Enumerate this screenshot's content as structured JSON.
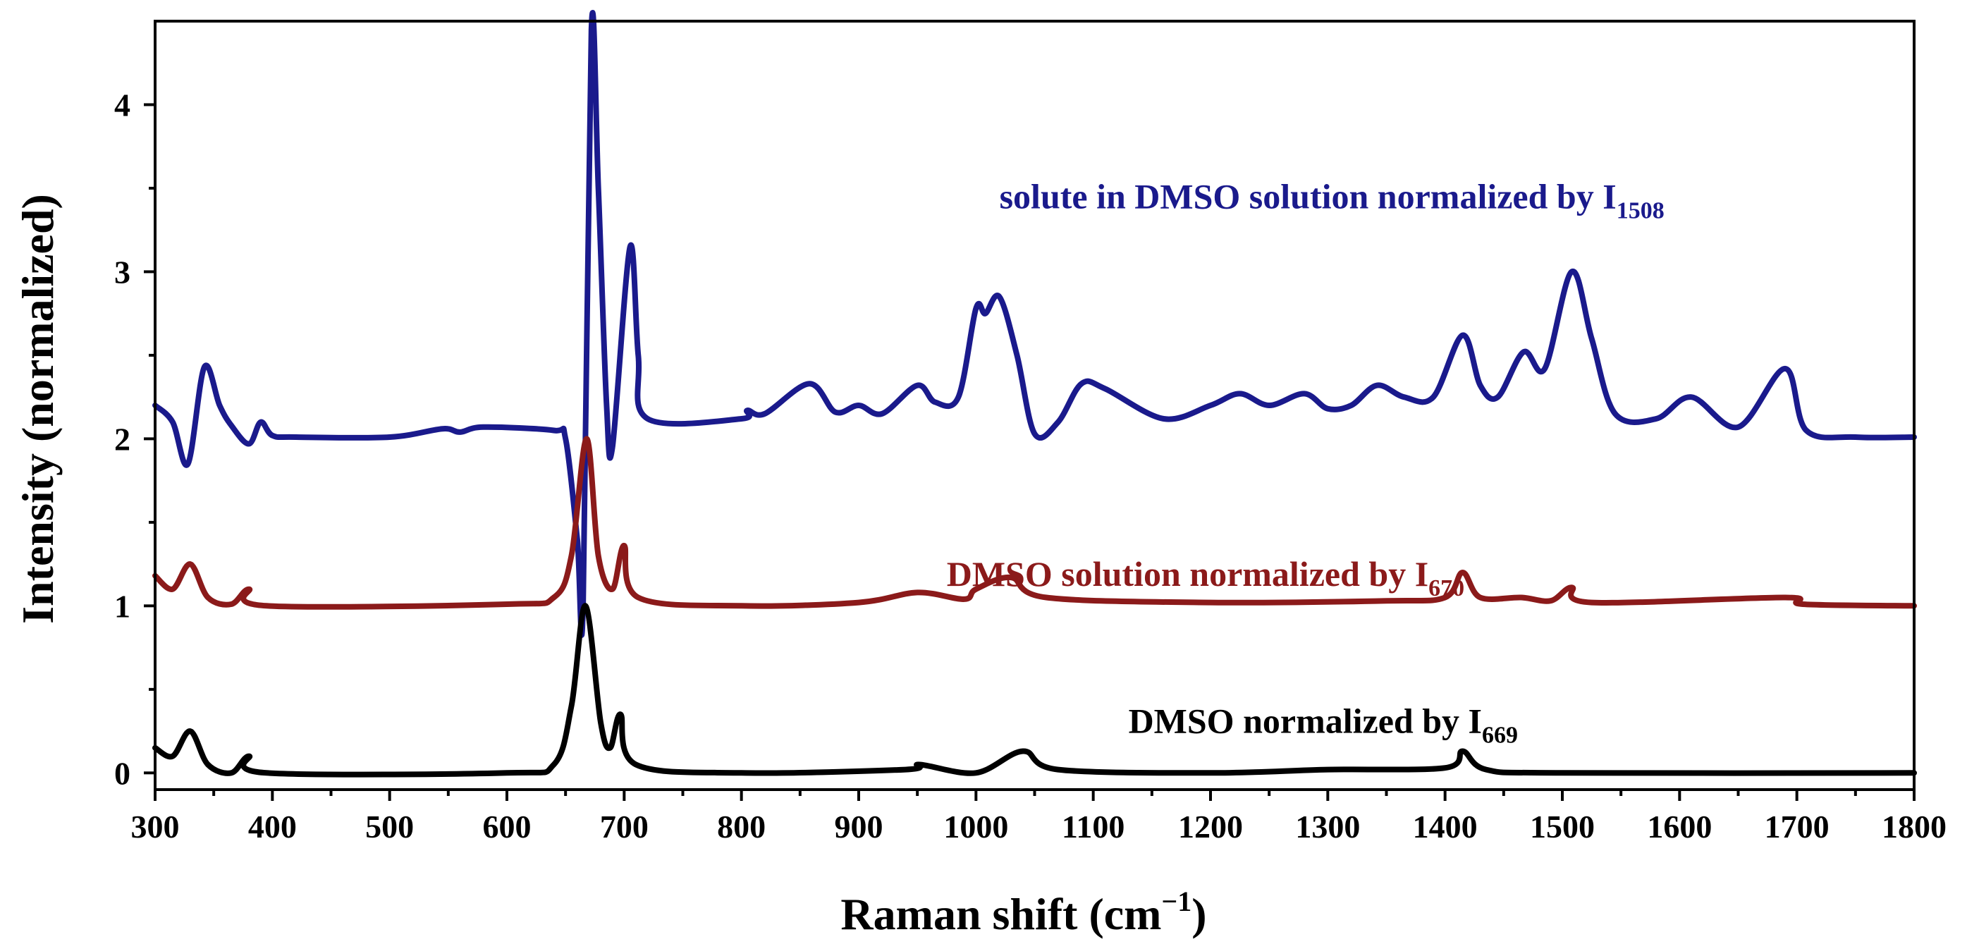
{
  "chart_data": {
    "type": "line",
    "xlabel": "Raman shift (cm",
    "xlabel_sup": "−1",
    "xlabel_close": ")",
    "ylabel": "Intensity (normalized)",
    "xlim": [
      300,
      1800
    ],
    "ylim": [
      -0.1,
      4.5
    ],
    "xticks": [
      "300",
      "400",
      "500",
      "600",
      "700",
      "800",
      "900",
      "1000",
      "1100",
      "1200",
      "1300",
      "1400",
      "1500",
      "1600",
      "1700",
      "1800"
    ],
    "yticks": [
      "0",
      "1",
      "2",
      "3",
      "4"
    ],
    "grid": false,
    "series": [
      {
        "name": "solute in DMSO solution normalized by I1508",
        "color": "#1a1a8c",
        "label": {
          "text": "solute in DMSO solution normalized  by I",
          "sub": "1508"
        },
        "baseline": 2.0,
        "anchors": [
          [
            300,
            2.2
          ],
          [
            315,
            2.1
          ],
          [
            328,
            1.85
          ],
          [
            342,
            2.43
          ],
          [
            355,
            2.2
          ],
          [
            365,
            2.08
          ],
          [
            380,
            1.97
          ],
          [
            390,
            2.1
          ],
          [
            400,
            2.02
          ],
          [
            420,
            2.01
          ],
          [
            500,
            2.01
          ],
          [
            545,
            2.06
          ],
          [
            560,
            2.04
          ],
          [
            580,
            2.07
          ],
          [
            640,
            2.05
          ],
          [
            650,
            2.0
          ],
          [
            660,
            1.4
          ],
          [
            665,
            1.0
          ],
          [
            672,
            4.45
          ],
          [
            678,
            3.5
          ],
          [
            685,
            2.2
          ],
          [
            690,
            1.95
          ],
          [
            705,
            3.15
          ],
          [
            712,
            2.5
          ],
          [
            720,
            2.12
          ],
          [
            800,
            2.12
          ],
          [
            805,
            2.17
          ],
          [
            820,
            2.15
          ],
          [
            858,
            2.33
          ],
          [
            880,
            2.16
          ],
          [
            900,
            2.2
          ],
          [
            920,
            2.15
          ],
          [
            950,
            2.32
          ],
          [
            965,
            2.22
          ],
          [
            985,
            2.25
          ],
          [
            1000,
            2.78
          ],
          [
            1008,
            2.75
          ],
          [
            1020,
            2.85
          ],
          [
            1035,
            2.5
          ],
          [
            1050,
            2.03
          ],
          [
            1070,
            2.1
          ],
          [
            1090,
            2.33
          ],
          [
            1110,
            2.3
          ],
          [
            1160,
            2.12
          ],
          [
            1200,
            2.2
          ],
          [
            1225,
            2.27
          ],
          [
            1250,
            2.2
          ],
          [
            1280,
            2.27
          ],
          [
            1300,
            2.18
          ],
          [
            1320,
            2.2
          ],
          [
            1342,
            2.32
          ],
          [
            1365,
            2.25
          ],
          [
            1390,
            2.25
          ],
          [
            1415,
            2.62
          ],
          [
            1430,
            2.32
          ],
          [
            1445,
            2.25
          ],
          [
            1467,
            2.52
          ],
          [
            1485,
            2.42
          ],
          [
            1508,
            3.0
          ],
          [
            1525,
            2.6
          ],
          [
            1545,
            2.15
          ],
          [
            1580,
            2.12
          ],
          [
            1610,
            2.25
          ],
          [
            1650,
            2.07
          ],
          [
            1690,
            2.42
          ],
          [
            1708,
            2.05
          ],
          [
            1750,
            2.01
          ],
          [
            1800,
            2.01
          ]
        ]
      },
      {
        "name": "DMSO solution normalized by I670",
        "color": "#8b1a1a",
        "label": {
          "text": "DMSO solution normalized  by I",
          "sub": "670"
        },
        "baseline": 1.0,
        "anchors": [
          [
            300,
            1.18
          ],
          [
            315,
            1.1
          ],
          [
            330,
            1.25
          ],
          [
            345,
            1.05
          ],
          [
            365,
            1.01
          ],
          [
            380,
            1.1
          ],
          [
            395,
            1.0
          ],
          [
            600,
            1.01
          ],
          [
            640,
            1.05
          ],
          [
            655,
            1.3
          ],
          [
            668,
            2.0
          ],
          [
            678,
            1.3
          ],
          [
            690,
            1.1
          ],
          [
            700,
            1.36
          ],
          [
            712,
            1.05
          ],
          [
            800,
            1.0
          ],
          [
            900,
            1.02
          ],
          [
            950,
            1.08
          ],
          [
            990,
            1.04
          ],
          [
            1000,
            1.1
          ],
          [
            1030,
            1.17
          ],
          [
            1060,
            1.05
          ],
          [
            1200,
            1.02
          ],
          [
            1350,
            1.03
          ],
          [
            1400,
            1.05
          ],
          [
            1415,
            1.2
          ],
          [
            1430,
            1.05
          ],
          [
            1465,
            1.05
          ],
          [
            1490,
            1.03
          ],
          [
            1508,
            1.11
          ],
          [
            1525,
            1.02
          ],
          [
            1690,
            1.05
          ],
          [
            1705,
            1.01
          ],
          [
            1800,
            1.0
          ]
        ]
      },
      {
        "name": "DMSO normalized by I669",
        "color": "#000000",
        "label": {
          "text": "DMSO normalized  by I",
          "sub": "669"
        },
        "baseline": 0.0,
        "anchors": [
          [
            300,
            0.15
          ],
          [
            315,
            0.1
          ],
          [
            330,
            0.25
          ],
          [
            345,
            0.05
          ],
          [
            365,
            0.0
          ],
          [
            380,
            0.1
          ],
          [
            395,
            0.0
          ],
          [
            600,
            0.0
          ],
          [
            640,
            0.05
          ],
          [
            655,
            0.4
          ],
          [
            667,
            1.0
          ],
          [
            680,
            0.3
          ],
          [
            688,
            0.15
          ],
          [
            697,
            0.35
          ],
          [
            710,
            0.05
          ],
          [
            800,
            0.0
          ],
          [
            940,
            0.02
          ],
          [
            952,
            0.05
          ],
          [
            1000,
            0.0
          ],
          [
            1040,
            0.13
          ],
          [
            1070,
            0.02
          ],
          [
            1200,
            0.0
          ],
          [
            1300,
            0.02
          ],
          [
            1400,
            0.03
          ],
          [
            1415,
            0.13
          ],
          [
            1435,
            0.02
          ],
          [
            1500,
            0.0
          ],
          [
            1800,
            0.0
          ]
        ]
      }
    ]
  }
}
